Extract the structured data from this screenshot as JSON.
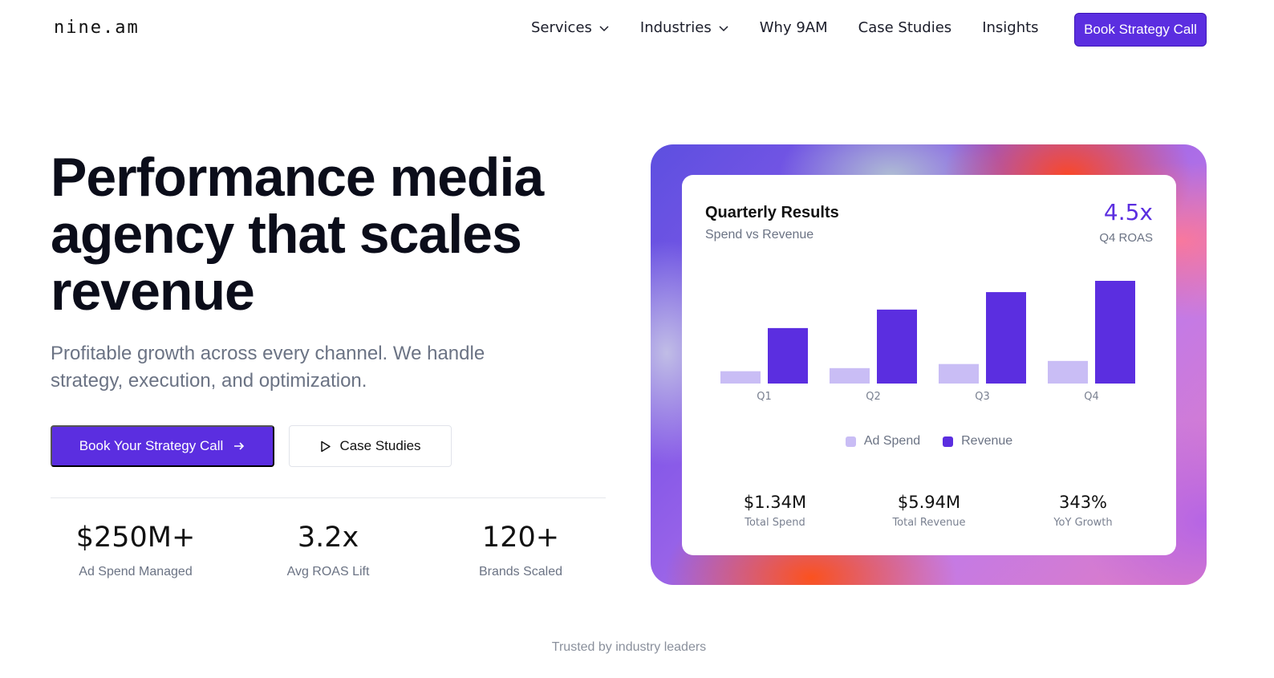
{
  "brand": {
    "logo_text": "nine.am",
    "accent": "#5b2ee0",
    "light_accent": "#c9bdf5"
  },
  "nav": {
    "items": [
      {
        "label": "Services",
        "dropdown": true
      },
      {
        "label": "Industries",
        "dropdown": true
      },
      {
        "label": "Why 9AM",
        "dropdown": false
      },
      {
        "label": "Case Studies",
        "dropdown": false
      },
      {
        "label": "Insights",
        "dropdown": false
      }
    ],
    "cta_label": "Book Strategy Call"
  },
  "hero": {
    "headline_line1": "Performance media",
    "headline_line2": "agency that scales",
    "headline_line3": "revenue",
    "subhead": "Profitable growth across every channel. We handle strategy, execution, and optimization.",
    "primary_cta": "Book Your Strategy Call",
    "secondary_cta": "Case Studies",
    "stats": [
      {
        "value": "$250M+",
        "label": "Ad Spend Managed"
      },
      {
        "value": "3.2x",
        "label": "Avg ROAS Lift"
      },
      {
        "value": "120+",
        "label": "Brands Scaled"
      }
    ]
  },
  "results_card": {
    "title": "Quarterly Results",
    "subtitle": "Spend vs Revenue",
    "highlight_value": "4.5x",
    "highlight_label": "Q4 ROAS",
    "legend": [
      "Ad Spend",
      "Revenue"
    ],
    "kpis": [
      {
        "value": "$1.34M",
        "label": "Total Spend"
      },
      {
        "value": "$5.94M",
        "label": "Total Revenue"
      },
      {
        "value": "343%",
        "label": "YoY Growth"
      }
    ]
  },
  "chart_data": {
    "type": "bar",
    "categories": [
      "Q1",
      "Q2",
      "Q3",
      "Q4"
    ],
    "series": [
      {
        "name": "Ad Spend",
        "values": [
          0.12,
          0.15,
          0.19,
          0.22
        ],
        "color": "#c9bdf5"
      },
      {
        "name": "Revenue",
        "values": [
          0.54,
          0.72,
          0.89,
          1.0
        ],
        "color": "#5b2ee0"
      }
    ],
    "ylim": [
      0,
      1
    ],
    "grid": false,
    "legend_position": "bottom"
  },
  "footer": {
    "trusted_text": "Trusted by industry leaders"
  }
}
